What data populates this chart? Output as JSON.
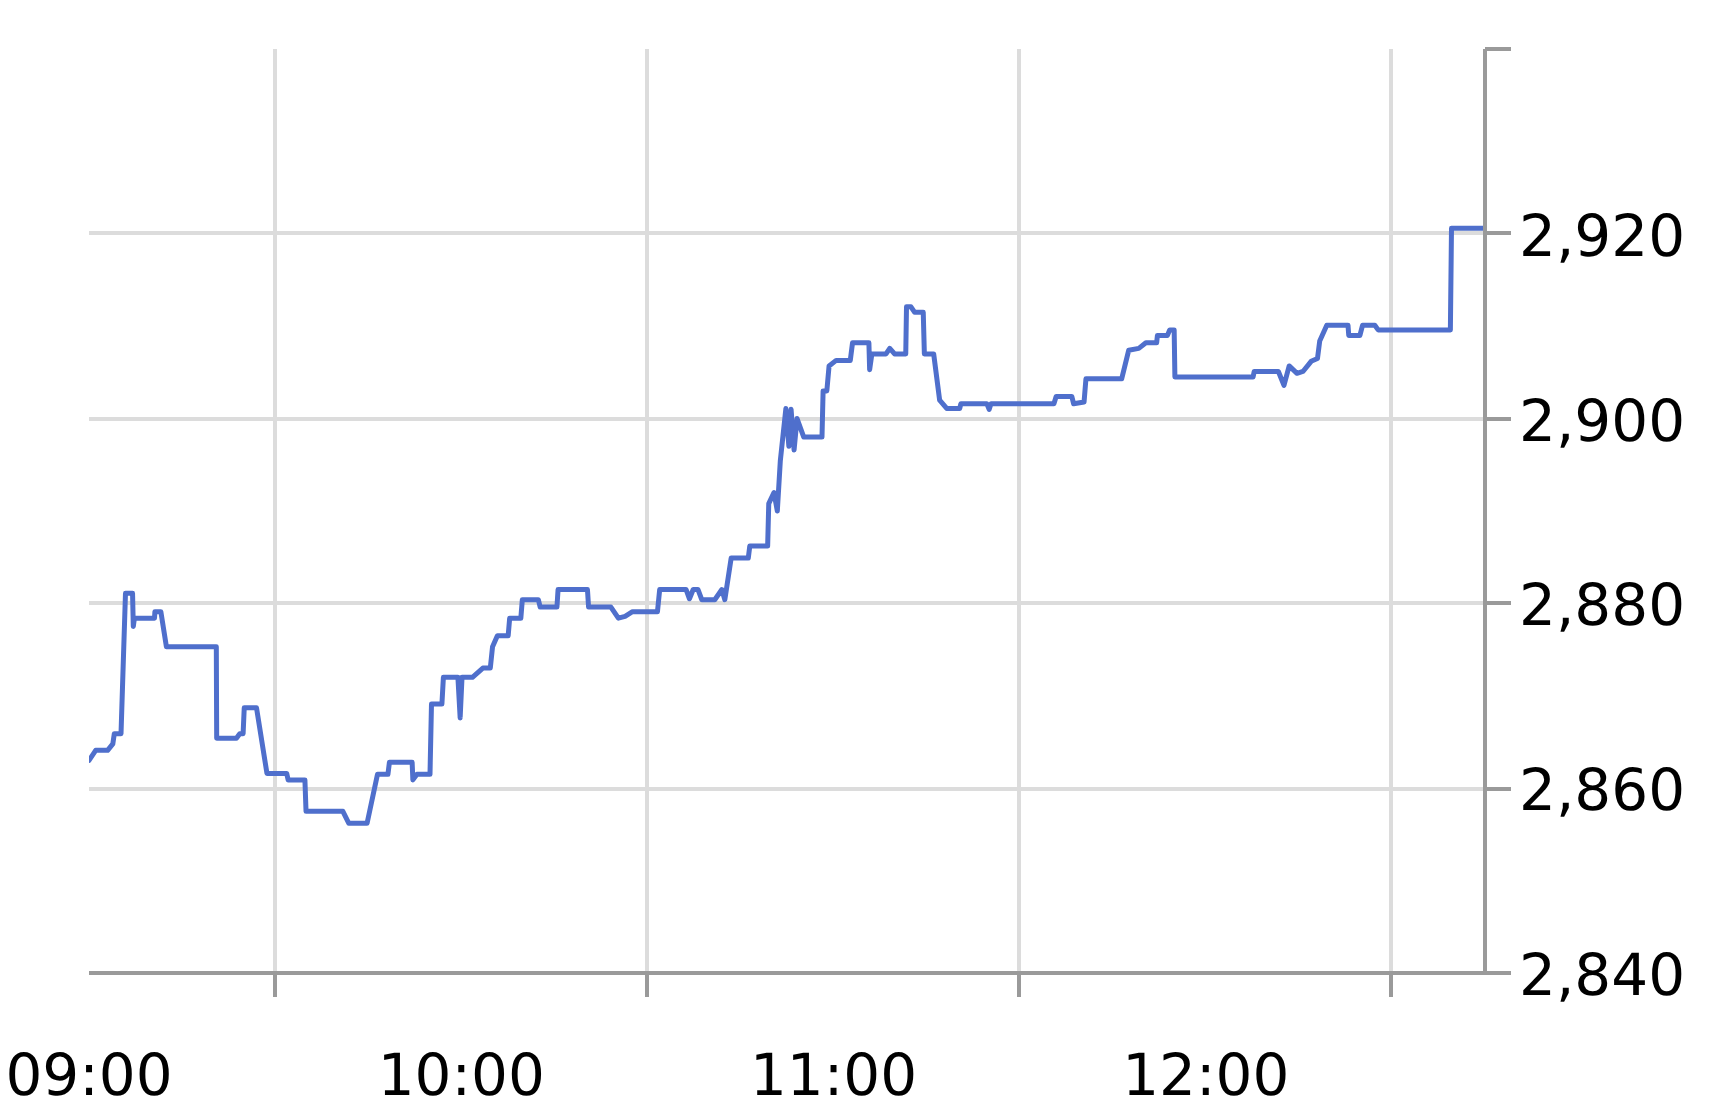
{
  "chart_data": {
    "type": "line",
    "color": "#4f6fcc",
    "x": [
      9.0,
      9.018,
      9.05,
      9.064,
      9.068,
      9.086,
      9.098,
      9.117,
      9.119,
      9.122,
      9.176,
      9.177,
      9.193,
      9.208,
      9.342,
      9.343,
      9.396,
      9.405,
      9.414,
      9.417,
      9.45,
      9.478,
      9.531,
      9.535,
      9.58,
      9.583,
      9.682,
      9.698,
      9.747,
      9.775,
      9.803,
      9.807,
      9.868,
      9.87,
      9.881,
      9.916,
      9.92,
      9.948,
      9.952,
      9.991,
      9.997,
      10.002,
      10.03,
      10.058,
      10.078,
      10.084,
      10.097,
      10.126,
      10.13,
      10.16,
      10.164,
      10.207,
      10.212,
      10.257,
      10.26,
      10.339,
      10.342,
      10.402,
      10.422,
      10.44,
      10.46,
      10.527,
      10.533,
      10.604,
      10.613,
      10.623,
      10.636,
      10.646,
      10.681,
      10.7,
      10.708,
      10.725,
      10.771,
      10.775,
      10.823,
      10.826,
      10.84,
      10.849,
      10.857,
      10.872,
      10.88,
      10.886,
      10.894,
      10.902,
      10.92,
      10.969,
      10.972,
      10.982,
      10.988,
      11.007,
      11.045,
      11.051,
      11.095,
      11.097,
      11.103,
      11.141,
      11.151,
      11.164,
      11.194,
      11.196,
      11.208,
      11.218,
      11.241,
      11.244,
      11.269,
      11.285,
      11.304,
      11.339,
      11.342,
      11.412,
      11.418,
      11.423,
      11.592,
      11.598,
      11.64,
      11.645,
      11.673,
      11.678,
      11.774,
      11.793,
      11.82,
      11.839,
      11.868,
      11.87,
      11.897,
      11.903,
      11.915,
      11.917,
      12.127,
      12.13,
      12.195,
      12.21,
      12.224,
      12.245,
      12.261,
      12.283,
      12.3,
      12.306,
      12.325,
      12.382,
      12.384,
      12.414,
      12.421,
      12.454,
      12.463,
      12.657,
      12.66,
      12.75
    ],
    "values": [
      2863.0,
      2864.1,
      2864.1,
      2864.8,
      2865.9,
      2865.9,
      2881.1,
      2881.1,
      2877.5,
      2878.4,
      2878.4,
      2879.1,
      2879.1,
      2875.3,
      2875.3,
      2865.4,
      2865.4,
      2865.9,
      2865.9,
      2868.7,
      2868.7,
      2861.6,
      2861.6,
      2860.9,
      2860.9,
      2857.5,
      2857.5,
      2856.2,
      2856.2,
      2861.5,
      2861.5,
      2862.8,
      2862.8,
      2860.9,
      2861.5,
      2861.5,
      2869.1,
      2869.1,
      2872.0,
      2872.0,
      2867.6,
      2872.0,
      2872.0,
      2873.0,
      2873.0,
      2875.3,
      2876.5,
      2876.5,
      2878.4,
      2878.4,
      2880.4,
      2880.4,
      2879.6,
      2879.6,
      2881.5,
      2881.5,
      2879.6,
      2879.6,
      2878.4,
      2878.6,
      2879.1,
      2879.1,
      2881.5,
      2881.5,
      2880.5,
      2881.5,
      2881.5,
      2880.4,
      2880.4,
      2881.5,
      2880.4,
      2884.9,
      2884.9,
      2886.2,
      2886.2,
      2890.8,
      2892.0,
      2890.0,
      2895.4,
      2901.1,
      2897.0,
      2901.0,
      2896.6,
      2900.0,
      2898.0,
      2898.0,
      2903.0,
      2903.0,
      2905.7,
      2906.3,
      2906.3,
      2908.2,
      2908.2,
      2905.3,
      2907.0,
      2907.0,
      2907.6,
      2907.0,
      2907.0,
      2912.1,
      2912.1,
      2911.5,
      2911.5,
      2907.0,
      2907.0,
      2902.0,
      2901.1,
      2901.1,
      2901.6,
      2901.6,
      2901.0,
      2901.6,
      2901.6,
      2902.4,
      2902.4,
      2901.6,
      2901.8,
      2904.3,
      2904.3,
      2907.4,
      2907.6,
      2908.2,
      2908.2,
      2909.0,
      2909.0,
      2909.6,
      2909.6,
      2904.5,
      2904.5,
      2905.1,
      2905.1,
      2903.6,
      2905.7,
      2904.9,
      2905.1,
      2906.2,
      2906.5,
      2908.4,
      2910.1,
      2910.1,
      2909.0,
      2909.0,
      2910.1,
      2910.1,
      2909.6,
      2909.6,
      2920.6,
      2920.6
    ],
    "xlim": [
      9,
      12.75
    ],
    "xticks": [
      {
        "value": 9,
        "label": "09:00"
      },
      {
        "value": 9.5,
        "label": null
      },
      {
        "value": 10,
        "label": "10:00"
      },
      {
        "value": 10.5,
        "label": null
      },
      {
        "value": 11,
        "label": "11:00"
      },
      {
        "value": 11.5,
        "label": null
      },
      {
        "value": 12,
        "label": "12:00"
      },
      {
        "value": 12.5,
        "label": null
      }
    ],
    "ylim": [
      2840,
      2940
    ],
    "yticks": [
      {
        "value": 2840,
        "label": "2,840"
      },
      {
        "value": 2860,
        "label": "2,860"
      },
      {
        "value": 2880,
        "label": "2,880"
      },
      {
        "value": 2900,
        "label": "2,900"
      },
      {
        "value": 2920,
        "label": "2,920"
      },
      {
        "value": 2940,
        "label": null
      }
    ],
    "grid": true
  }
}
